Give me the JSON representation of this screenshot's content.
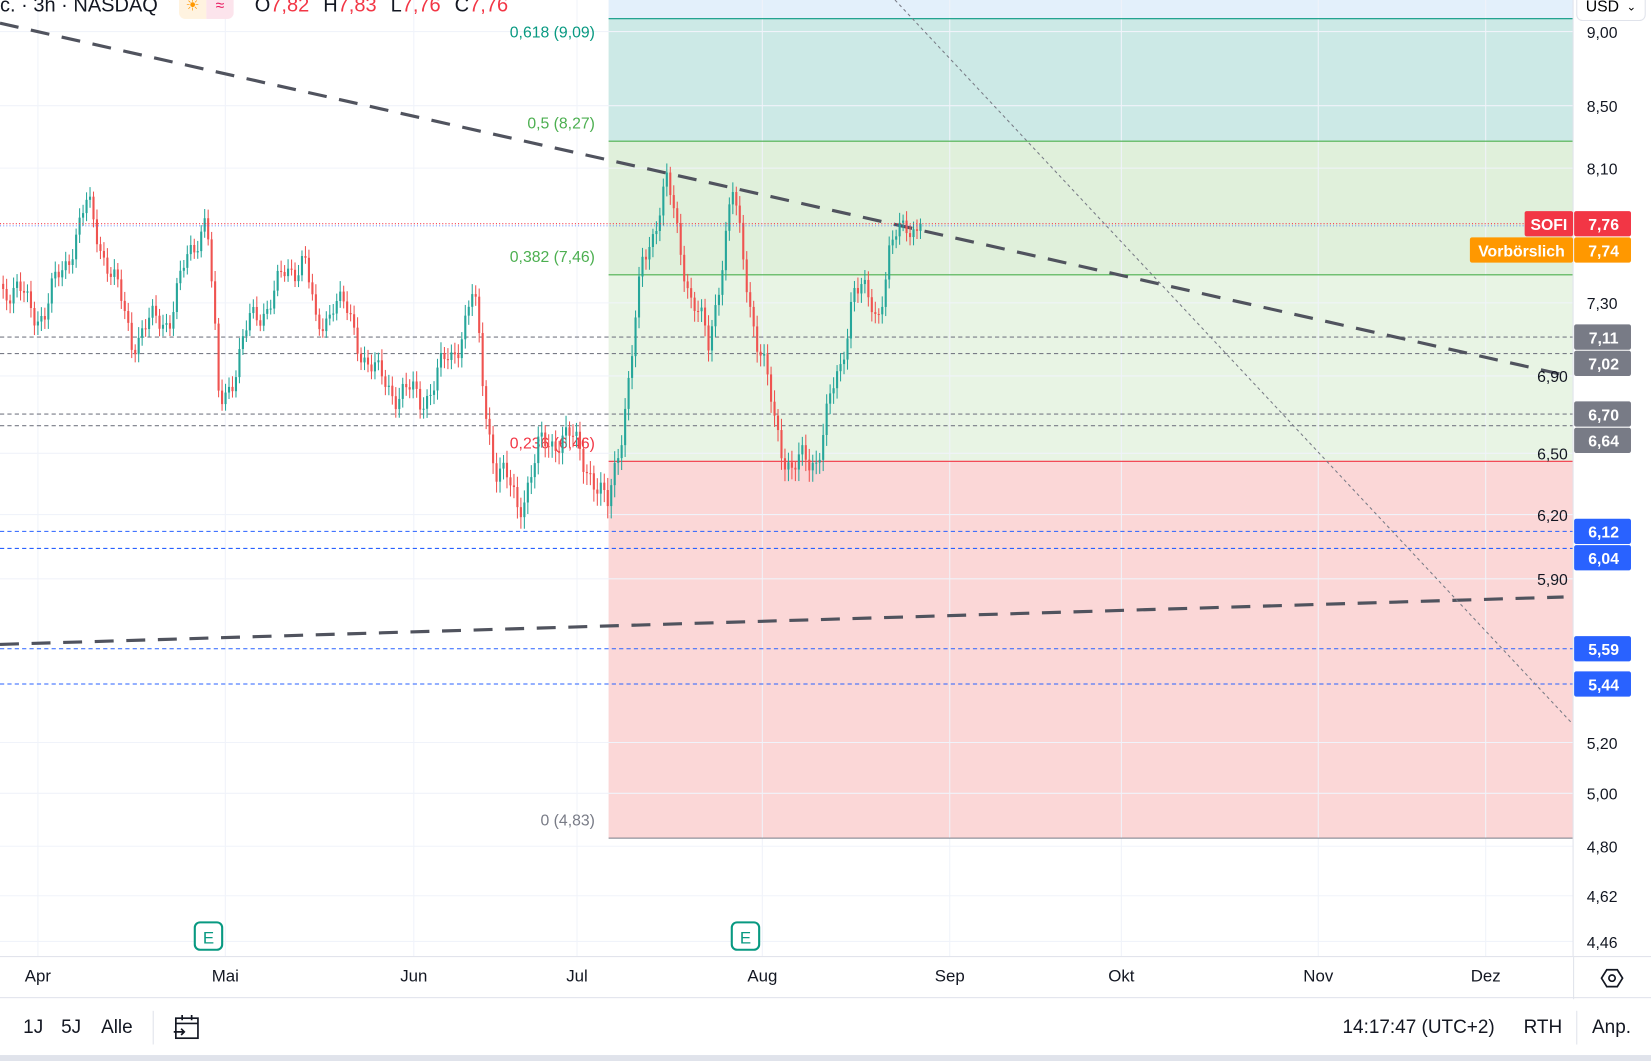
{
  "header": {
    "symbol_text": "c. · 3h · NASDAQ",
    "session_icons": [
      "sun-icon",
      "wave-icon"
    ],
    "ohlc": {
      "o_label": "O",
      "o": "7,82",
      "h_label": "H",
      "h": "7,83",
      "l_label": "L",
      "l": "7,76",
      "c_label": "C",
      "c": "7,76"
    },
    "currency": "USD"
  },
  "colors": {
    "up": "#26a69a",
    "down": "#ef5350",
    "last": "#f23645",
    "premarket": "#ff9800",
    "level_grey": "#787b86",
    "level_blue": "#2962ff"
  },
  "fib": {
    "levels": [
      {
        "label": "0,618 (9,09)",
        "value": 9.09,
        "color": "#089981"
      },
      {
        "label": "0,5 (8,27)",
        "value": 8.27,
        "color": "#4caf50"
      },
      {
        "label": "0,382 (7,46)",
        "value": 7.46,
        "color": "#4caf50"
      },
      {
        "label": "0,236 (6,46)",
        "value": 6.46,
        "color": "#f23645"
      },
      {
        "label": "0 (4,83)",
        "value": 4.83,
        "color": "#787b86"
      }
    ]
  },
  "price_axis": {
    "ticks": [
      "9,00",
      "8,50",
      "8,10",
      "7,30",
      "6,90",
      "6,50",
      "6,20",
      "5,90",
      "5,20",
      "5,00",
      "4,80",
      "4,62",
      "4,46"
    ],
    "scale": "log",
    "tags": [
      {
        "name": "SOFI",
        "value": "7,76",
        "color": "#f23645"
      },
      {
        "name": "Vorbörslich",
        "value": "7,74",
        "color": "#ff9800"
      }
    ],
    "levels_grey": [
      "7,11",
      "7,02",
      "6,70",
      "6,64"
    ],
    "levels_blue": [
      "6,12",
      "6,04",
      "5,59",
      "5,44"
    ]
  },
  "time_axis": {
    "labels": [
      "Apr",
      "Mai",
      "Jun",
      "Jul",
      "Aug",
      "Sep",
      "Okt",
      "Nov",
      "Dez"
    ]
  },
  "earnings": {
    "label": "E"
  },
  "bottom_bar": {
    "ranges": [
      "1J",
      "5J",
      "Alle"
    ],
    "clock": "14:17:47 (UTC+2)",
    "session": "RTH",
    "adjust": "Anp."
  },
  "chart_data": {
    "type": "candlestick",
    "scale": "log",
    "price_path": [
      [
        "03-26",
        7.41
      ],
      [
        "04-02",
        7.23
      ],
      [
        "04-09",
        7.87
      ],
      [
        "04-16",
        7.11
      ],
      [
        "04-22",
        7.23
      ],
      [
        "04-28",
        7.84
      ],
      [
        "04-30",
        6.72
      ],
      [
        "05-05",
        7.17
      ],
      [
        "05-14",
        7.59
      ],
      [
        "05-16",
        7.11
      ],
      [
        "05-19",
        7.35
      ],
      [
        "05-26",
        6.88
      ],
      [
        "06-02",
        6.77
      ],
      [
        "06-08",
        7.0
      ],
      [
        "06-12",
        7.35
      ],
      [
        "06-14",
        6.77
      ],
      [
        "06-16",
        6.45
      ],
      [
        "06-20",
        6.24
      ],
      [
        "06-24",
        6.5
      ],
      [
        "06-28",
        6.61
      ],
      [
        "07-03",
        6.45
      ],
      [
        "07-06",
        6.19
      ],
      [
        "07-08",
        6.56
      ],
      [
        "07-10",
        6.94
      ],
      [
        "07-12",
        7.53
      ],
      [
        "07-16",
        8.0
      ],
      [
        "07-20",
        7.35
      ],
      [
        "07-23",
        7.05
      ],
      [
        "07-27",
        7.94
      ],
      [
        "07-31",
        7.11
      ],
      [
        "08-03",
        6.67
      ],
      [
        "08-06",
        6.4
      ],
      [
        "08-10",
        6.5
      ],
      [
        "08-14",
        6.94
      ],
      [
        "08-16",
        7.41
      ],
      [
        "08-20",
        7.23
      ],
      [
        "08-22",
        7.59
      ],
      [
        "08-25",
        7.76
      ]
    ]
  }
}
